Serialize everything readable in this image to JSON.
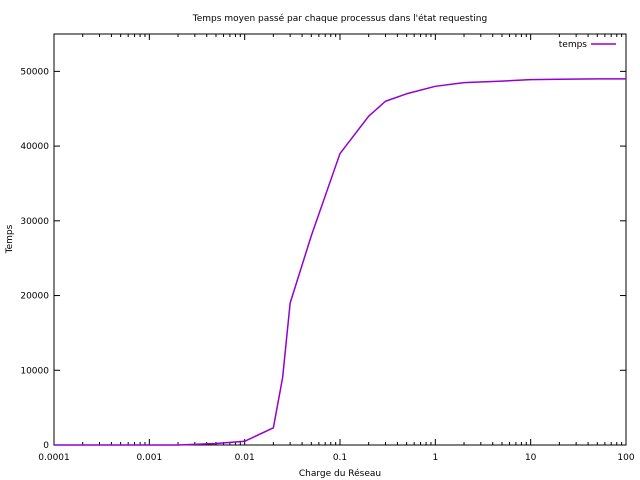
{
  "chart_data": {
    "type": "line",
    "title": "Temps moyen passé par chaque processus dans l'état requesting",
    "xlabel": "Charge du Réseau",
    "ylabel": "Temps",
    "xscale": "log",
    "xlim": [
      0.0001,
      100
    ],
    "ylim": [
      0,
      55000
    ],
    "x_ticks": [
      {
        "value": 0.0001,
        "label": "0.0001"
      },
      {
        "value": 0.001,
        "label": "0.001"
      },
      {
        "value": 0.01,
        "label": "0.01"
      },
      {
        "value": 0.1,
        "label": "0.1"
      },
      {
        "value": 1,
        "label": "1"
      },
      {
        "value": 10,
        "label": "10"
      },
      {
        "value": 100,
        "label": "100"
      }
    ],
    "y_ticks": [
      {
        "value": 0,
        "label": "0"
      },
      {
        "value": 10000,
        "label": "10000"
      },
      {
        "value": 20000,
        "label": "20000"
      },
      {
        "value": 30000,
        "label": "30000"
      },
      {
        "value": 40000,
        "label": "40000"
      },
      {
        "value": 50000,
        "label": "50000"
      }
    ],
    "legend": "top-right",
    "grid": false,
    "series": [
      {
        "name": "temps",
        "color": "#9400d3",
        "x": [
          0.0001,
          0.001,
          0.002,
          0.005,
          0.01,
          0.02,
          0.025,
          0.03,
          0.05,
          0.1,
          0.2,
          0.3,
          0.5,
          1,
          2,
          5,
          10,
          20,
          50,
          100
        ],
        "y": [
          0,
          0,
          0,
          200,
          500,
          2300,
          9000,
          19000,
          28000,
          39000,
          44000,
          46000,
          47000,
          48000,
          48500,
          48700,
          48900,
          48950,
          49000,
          49000
        ]
      }
    ]
  }
}
